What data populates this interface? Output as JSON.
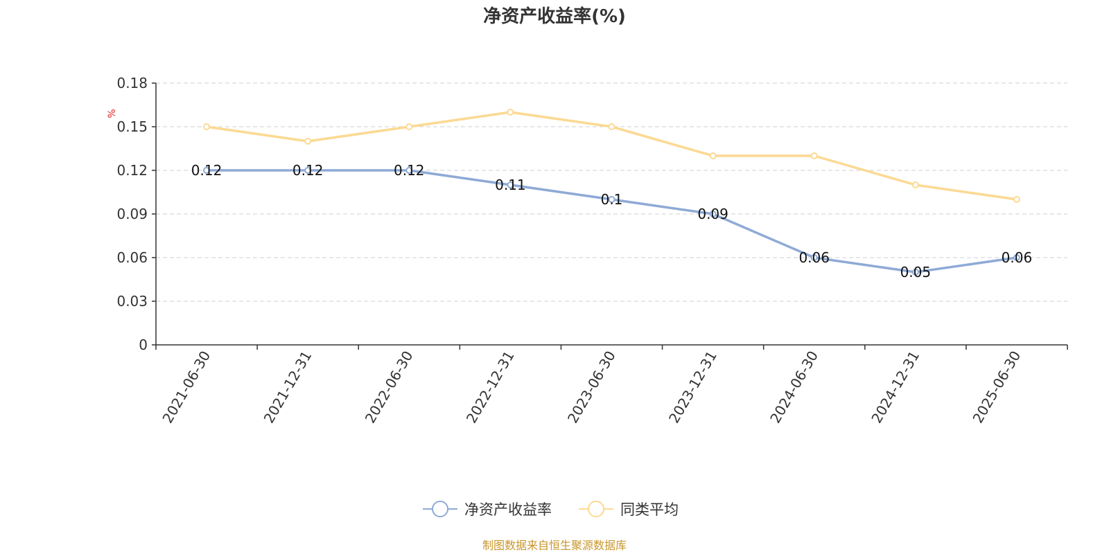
{
  "chart_data": {
    "type": "line",
    "title": "净资产收益率(%)",
    "y_unit": "%",
    "categories": [
      "2021-06-30",
      "2021-12-31",
      "2022-06-30",
      "2022-12-31",
      "2023-06-30",
      "2023-12-31",
      "2024-06-30",
      "2024-12-31",
      "2025-06-30"
    ],
    "ylim": [
      0,
      0.18
    ],
    "yticks": [
      "0",
      "0.03",
      "0.06",
      "0.09",
      "0.12",
      "0.15",
      "0.18"
    ],
    "grid": true,
    "legend_position": "bottom",
    "series": [
      {
        "name": "净资产收益率",
        "color": "#8eaad6",
        "values": [
          0.12,
          0.12,
          0.12,
          0.11,
          0.1,
          0.09,
          0.06,
          0.05,
          0.06
        ],
        "labels": [
          "0.12",
          "0.12",
          "0.12",
          "0.11",
          "0.1",
          "0.09",
          "0.06",
          "0.05",
          "0.06"
        ]
      },
      {
        "name": "同类平均",
        "color": "#fcd993",
        "values": [
          0.15,
          0.14,
          0.15,
          0.16,
          0.15,
          0.13,
          0.13,
          0.11,
          0.1
        ]
      }
    ]
  },
  "footer": "制图数据来自恒生聚源数据库"
}
